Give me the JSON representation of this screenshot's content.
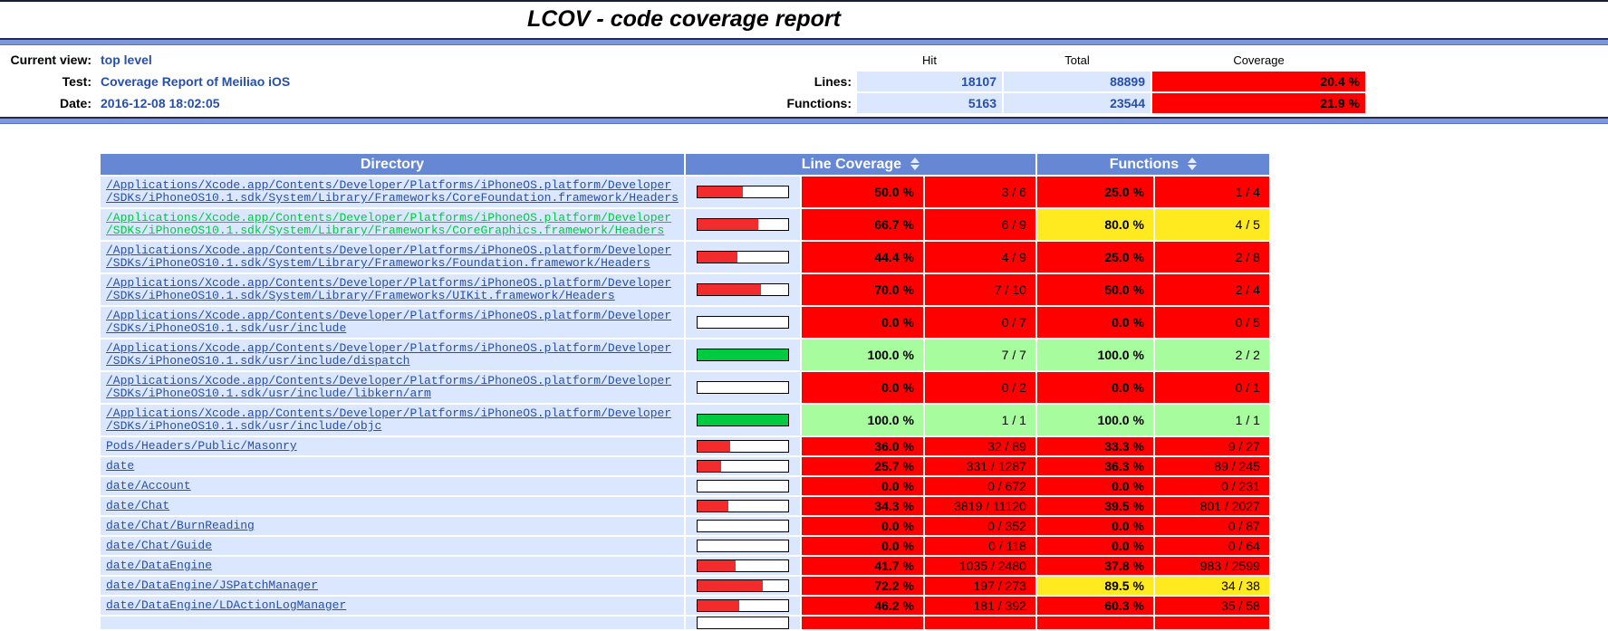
{
  "page_title": "LCOV - code coverage report",
  "colors": {
    "header_blue": "#6688D4",
    "ruler_blue": "#7E97DC",
    "light_blue_cell": "#DAE7FE",
    "coverage_low_red": "#FF0000",
    "coverage_med_yellow": "#FFEA20",
    "coverage_high_green": "#A7FC9D",
    "bar_fill_red": "#F22C2C",
    "bar_fill_green": "#00CB40",
    "link_blue": "#284FA8",
    "link_visited_green": "#00CB40"
  },
  "header": {
    "labels": {
      "current_view": "Current view:",
      "test": "Test:",
      "date": "Date:"
    },
    "values": {
      "current_view": "top level",
      "test": "Coverage Report of Meiliao iOS",
      "date": "2016-12-08 18:02:05"
    },
    "cov_table": {
      "col_headers": [
        "Hit",
        "Total",
        "Coverage"
      ],
      "rows": [
        {
          "label": "Lines:",
          "hit": "18107",
          "total": "88899",
          "coverage": "20.4 %"
        },
        {
          "label": "Functions:",
          "hit": "5163",
          "total": "23544",
          "coverage": "21.9 %"
        }
      ]
    }
  },
  "table": {
    "headers": {
      "directory": "Directory",
      "line_coverage": "Line Coverage",
      "functions": "Functions"
    },
    "rows": [
      {
        "dir_lines": [
          "/Applications/Xcode.app/Contents/Developer/Platforms/iPhoneOS.platform/Developer",
          "/SDKs/iPhoneOS10.1.sdk/System/Library/Frameworks/CoreFoundation.framework/Headers"
        ],
        "visited": false,
        "bar_pct": 50.0,
        "bar_color": "red",
        "line_pct": "50.0 %",
        "line_ratio": "3 / 6",
        "line_level": "lo",
        "func_pct": "25.0 %",
        "func_ratio": "1 / 4",
        "func_level": "lo"
      },
      {
        "dir_lines": [
          "/Applications/Xcode.app/Contents/Developer/Platforms/iPhoneOS.platform/Developer",
          "/SDKs/iPhoneOS10.1.sdk/System/Library/Frameworks/CoreGraphics.framework/Headers"
        ],
        "visited": true,
        "bar_pct": 66.7,
        "bar_color": "red",
        "line_pct": "66.7 %",
        "line_ratio": "6 / 9",
        "line_level": "lo",
        "func_pct": "80.0 %",
        "func_ratio": "4 / 5",
        "func_level": "med"
      },
      {
        "dir_lines": [
          "/Applications/Xcode.app/Contents/Developer/Platforms/iPhoneOS.platform/Developer",
          "/SDKs/iPhoneOS10.1.sdk/System/Library/Frameworks/Foundation.framework/Headers"
        ],
        "visited": false,
        "bar_pct": 44.4,
        "bar_color": "red",
        "line_pct": "44.4 %",
        "line_ratio": "4 / 9",
        "line_level": "lo",
        "func_pct": "25.0 %",
        "func_ratio": "2 / 8",
        "func_level": "lo"
      },
      {
        "dir_lines": [
          "/Applications/Xcode.app/Contents/Developer/Platforms/iPhoneOS.platform/Developer",
          "/SDKs/iPhoneOS10.1.sdk/System/Library/Frameworks/UIKit.framework/Headers"
        ],
        "visited": false,
        "bar_pct": 70.0,
        "bar_color": "red",
        "line_pct": "70.0 %",
        "line_ratio": "7 / 10",
        "line_level": "lo",
        "func_pct": "50.0 %",
        "func_ratio": "2 / 4",
        "func_level": "lo"
      },
      {
        "dir_lines": [
          "/Applications/Xcode.app/Contents/Developer/Platforms/iPhoneOS.platform/Developer",
          "/SDKs/iPhoneOS10.1.sdk/usr/include"
        ],
        "visited": false,
        "bar_pct": 0,
        "bar_color": "red",
        "line_pct": "0.0 %",
        "line_ratio": "0 / 7",
        "line_level": "lo",
        "func_pct": "0.0 %",
        "func_ratio": "0 / 5",
        "func_level": "lo"
      },
      {
        "dir_lines": [
          "/Applications/Xcode.app/Contents/Developer/Platforms/iPhoneOS.platform/Developer",
          "/SDKs/iPhoneOS10.1.sdk/usr/include/dispatch"
        ],
        "visited": false,
        "bar_pct": 100,
        "bar_color": "green",
        "line_pct": "100.0 %",
        "line_ratio": "7 / 7",
        "line_level": "hi",
        "func_pct": "100.0 %",
        "func_ratio": "2 / 2",
        "func_level": "hi"
      },
      {
        "dir_lines": [
          "/Applications/Xcode.app/Contents/Developer/Platforms/iPhoneOS.platform/Developer",
          "/SDKs/iPhoneOS10.1.sdk/usr/include/libkern/arm"
        ],
        "visited": false,
        "bar_pct": 0,
        "bar_color": "red",
        "line_pct": "0.0 %",
        "line_ratio": "0 / 2",
        "line_level": "lo",
        "func_pct": "0.0 %",
        "func_ratio": "0 / 1",
        "func_level": "lo"
      },
      {
        "dir_lines": [
          "/Applications/Xcode.app/Contents/Developer/Platforms/iPhoneOS.platform/Developer",
          "/SDKs/iPhoneOS10.1.sdk/usr/include/objc"
        ],
        "visited": false,
        "bar_pct": 100,
        "bar_color": "green",
        "line_pct": "100.0 %",
        "line_ratio": "1 / 1",
        "line_level": "hi",
        "func_pct": "100.0 %",
        "func_ratio": "1 / 1",
        "func_level": "hi"
      },
      {
        "dir_lines": [
          "Pods/Headers/Public/Masonry"
        ],
        "visited": false,
        "bar_pct": 36.0,
        "bar_color": "red",
        "line_pct": "36.0 %",
        "line_ratio": "32 / 89",
        "line_level": "lo",
        "func_pct": "33.3 %",
        "func_ratio": "9 / 27",
        "func_level": "lo"
      },
      {
        "dir_lines": [
          "date"
        ],
        "visited": false,
        "bar_pct": 25.7,
        "bar_color": "red",
        "line_pct": "25.7 %",
        "line_ratio": "331 / 1287",
        "line_level": "lo",
        "func_pct": "36.3 %",
        "func_ratio": "89 / 245",
        "func_level": "lo"
      },
      {
        "dir_lines": [
          "date/Account"
        ],
        "visited": false,
        "bar_pct": 0,
        "bar_color": "red",
        "line_pct": "0.0 %",
        "line_ratio": "0 / 672",
        "line_level": "lo",
        "func_pct": "0.0 %",
        "func_ratio": "0 / 231",
        "func_level": "lo"
      },
      {
        "dir_lines": [
          "date/Chat"
        ],
        "visited": false,
        "bar_pct": 34.3,
        "bar_color": "red",
        "line_pct": "34.3 %",
        "line_ratio": "3819 / 11120",
        "line_level": "lo",
        "func_pct": "39.5 %",
        "func_ratio": "801 / 2027",
        "func_level": "lo"
      },
      {
        "dir_lines": [
          "date/Chat/BurnReading"
        ],
        "visited": false,
        "bar_pct": 0,
        "bar_color": "red",
        "line_pct": "0.0 %",
        "line_ratio": "0 / 352",
        "line_level": "lo",
        "func_pct": "0.0 %",
        "func_ratio": "0 / 87",
        "func_level": "lo"
      },
      {
        "dir_lines": [
          "date/Chat/Guide"
        ],
        "visited": false,
        "bar_pct": 0,
        "bar_color": "red",
        "line_pct": "0.0 %",
        "line_ratio": "0 / 118",
        "line_level": "lo",
        "func_pct": "0.0 %",
        "func_ratio": "0 / 64",
        "func_level": "lo"
      },
      {
        "dir_lines": [
          "date/DataEngine"
        ],
        "visited": false,
        "bar_pct": 41.7,
        "bar_color": "red",
        "line_pct": "41.7 %",
        "line_ratio": "1035 / 2480",
        "line_level": "lo",
        "func_pct": "37.8 %",
        "func_ratio": "983 / 2599",
        "func_level": "lo"
      },
      {
        "dir_lines": [
          "date/DataEngine/JSPatchManager"
        ],
        "visited": false,
        "bar_pct": 72.2,
        "bar_color": "red",
        "line_pct": "72.2 %",
        "line_ratio": "197 / 273",
        "line_level": "lo",
        "func_pct": "89.5 %",
        "func_ratio": "34 / 38",
        "func_level": "med"
      },
      {
        "dir_lines": [
          "date/DataEngine/LDActionLogManager"
        ],
        "visited": false,
        "bar_pct": 46.2,
        "bar_color": "red",
        "line_pct": "46.2 %",
        "line_ratio": "181 / 392",
        "line_level": "lo",
        "func_pct": "60.3 %",
        "func_ratio": "35 / 58",
        "func_level": "lo"
      },
      {
        "partial": true,
        "dir_lines": [],
        "visited": false,
        "bar_pct": 0,
        "bar_color": "red",
        "line_pct": "",
        "line_ratio": "",
        "line_level": "lo",
        "func_pct": "",
        "func_ratio": "",
        "func_level": "lo"
      }
    ]
  }
}
